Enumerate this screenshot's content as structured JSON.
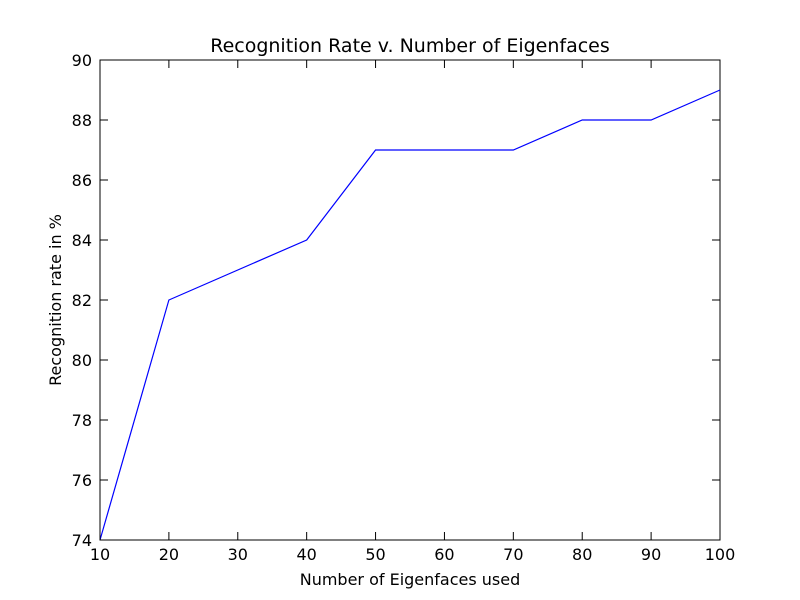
{
  "chart_data": {
    "type": "line",
    "title": "Recognition Rate v. Number of Eigenfaces",
    "xlabel": "Number of Eigenfaces used",
    "ylabel": "Recognition rate in %",
    "xlim": [
      10,
      100
    ],
    "ylim": [
      74,
      90
    ],
    "x_ticks": [
      10,
      20,
      30,
      40,
      50,
      60,
      70,
      80,
      90,
      100
    ],
    "y_ticks": [
      74,
      76,
      78,
      80,
      82,
      84,
      86,
      88,
      90
    ],
    "grid": false,
    "legend": "none",
    "series": [
      {
        "color": "#0000ff",
        "x": [
          10,
          20,
          40,
          50,
          70,
          80,
          90,
          100
        ],
        "y": [
          74,
          82,
          84,
          87,
          87,
          88,
          88,
          89
        ]
      }
    ]
  }
}
